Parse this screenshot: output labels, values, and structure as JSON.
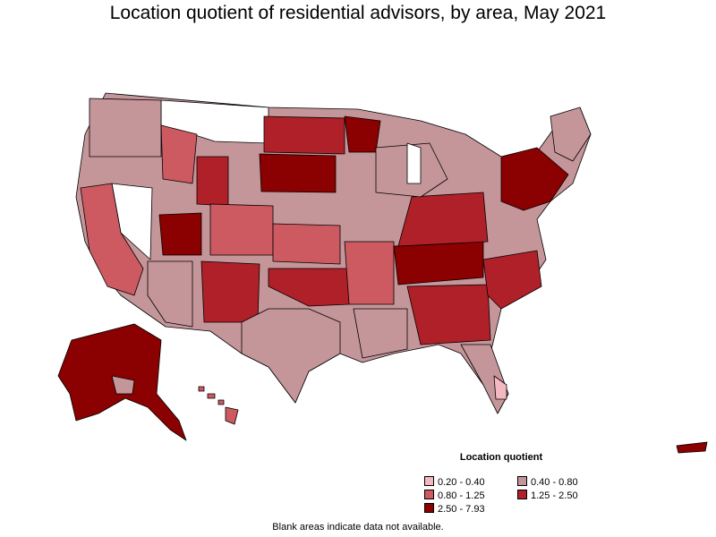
{
  "title": "Location quotient of residential advisors, by area, May 2021",
  "legend": {
    "title": "Location quotient",
    "items": [
      {
        "label": "0.20 - 0.40",
        "color": "#f4b8c0"
      },
      {
        "label": "0.40 - 0.80",
        "color": "#c4969a"
      },
      {
        "label": "0.80 - 1.25",
        "color": "#cc5a60"
      },
      {
        "label": "1.25 - 2.50",
        "color": "#b02028"
      },
      {
        "label": "2.50 - 7.93",
        "color": "#8b0000"
      }
    ]
  },
  "note": "Blank areas indicate data not available.",
  "colors": {
    "no_data": "#ffffff",
    "border": "#000000"
  }
}
